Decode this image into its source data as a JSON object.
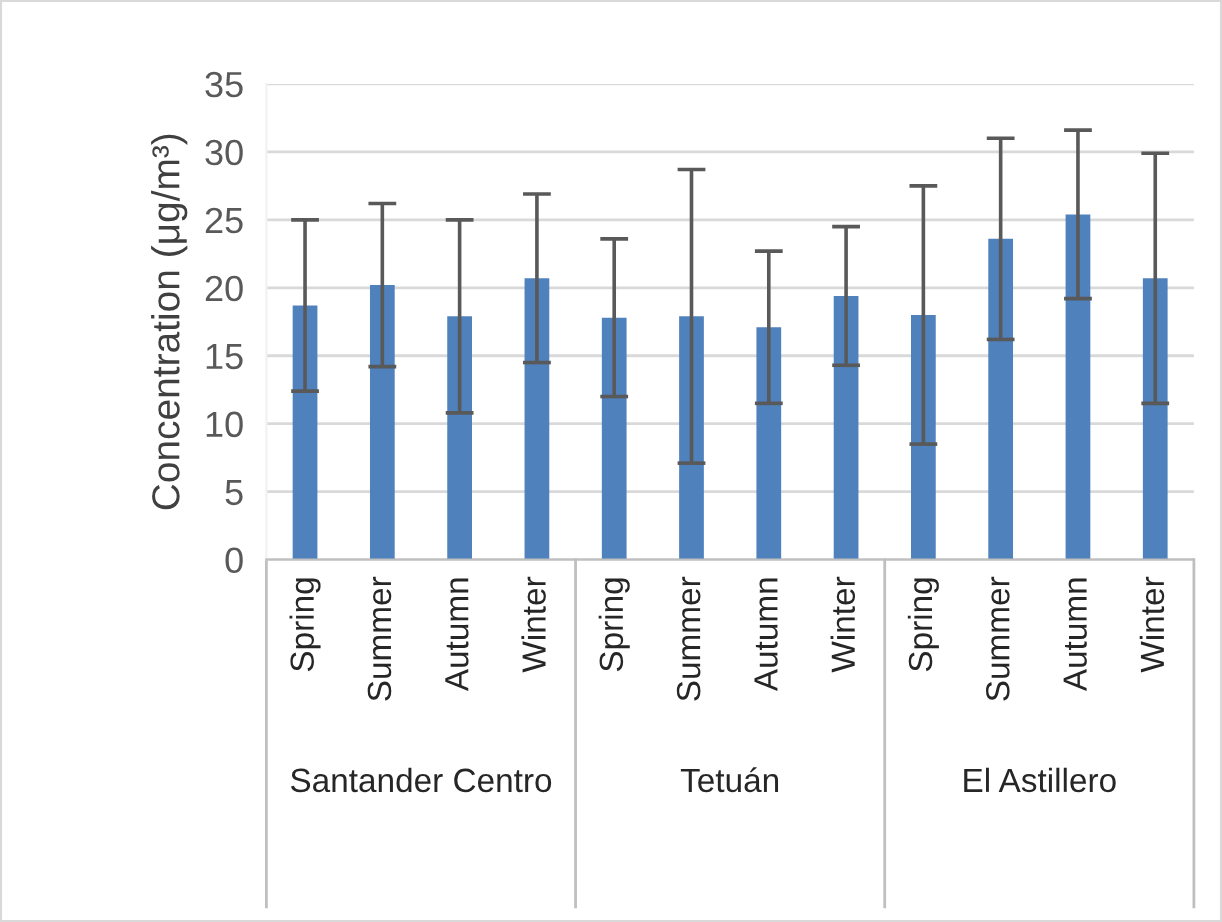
{
  "chart_data": {
    "type": "bar",
    "ylabel": "Concentration (μg/m³)",
    "categories": [
      "Spring",
      "Summer",
      "Autumn",
      "Winter",
      "Spring",
      "Summer",
      "Autumn",
      "Winter",
      "Spring",
      "Summer",
      "Autumn",
      "Winter"
    ],
    "values": [
      18.7,
      20.2,
      17.9,
      20.7,
      17.8,
      17.9,
      17.1,
      19.4,
      18.0,
      23.6,
      25.4,
      20.7
    ],
    "errors": [
      6.3,
      6.0,
      7.1,
      6.2,
      5.8,
      10.8,
      5.6,
      5.1,
      9.5,
      7.4,
      6.2,
      9.2
    ],
    "color": "#4f81bd",
    "annotations": [
      "Santander Centro",
      "Tetuán",
      "El Astillero"
    ],
    "ylim": [
      0,
      35
    ],
    "yticks": [
      0,
      5,
      10,
      15,
      20,
      25,
      30,
      35
    ],
    "grid": "y",
    "legend": false
  }
}
